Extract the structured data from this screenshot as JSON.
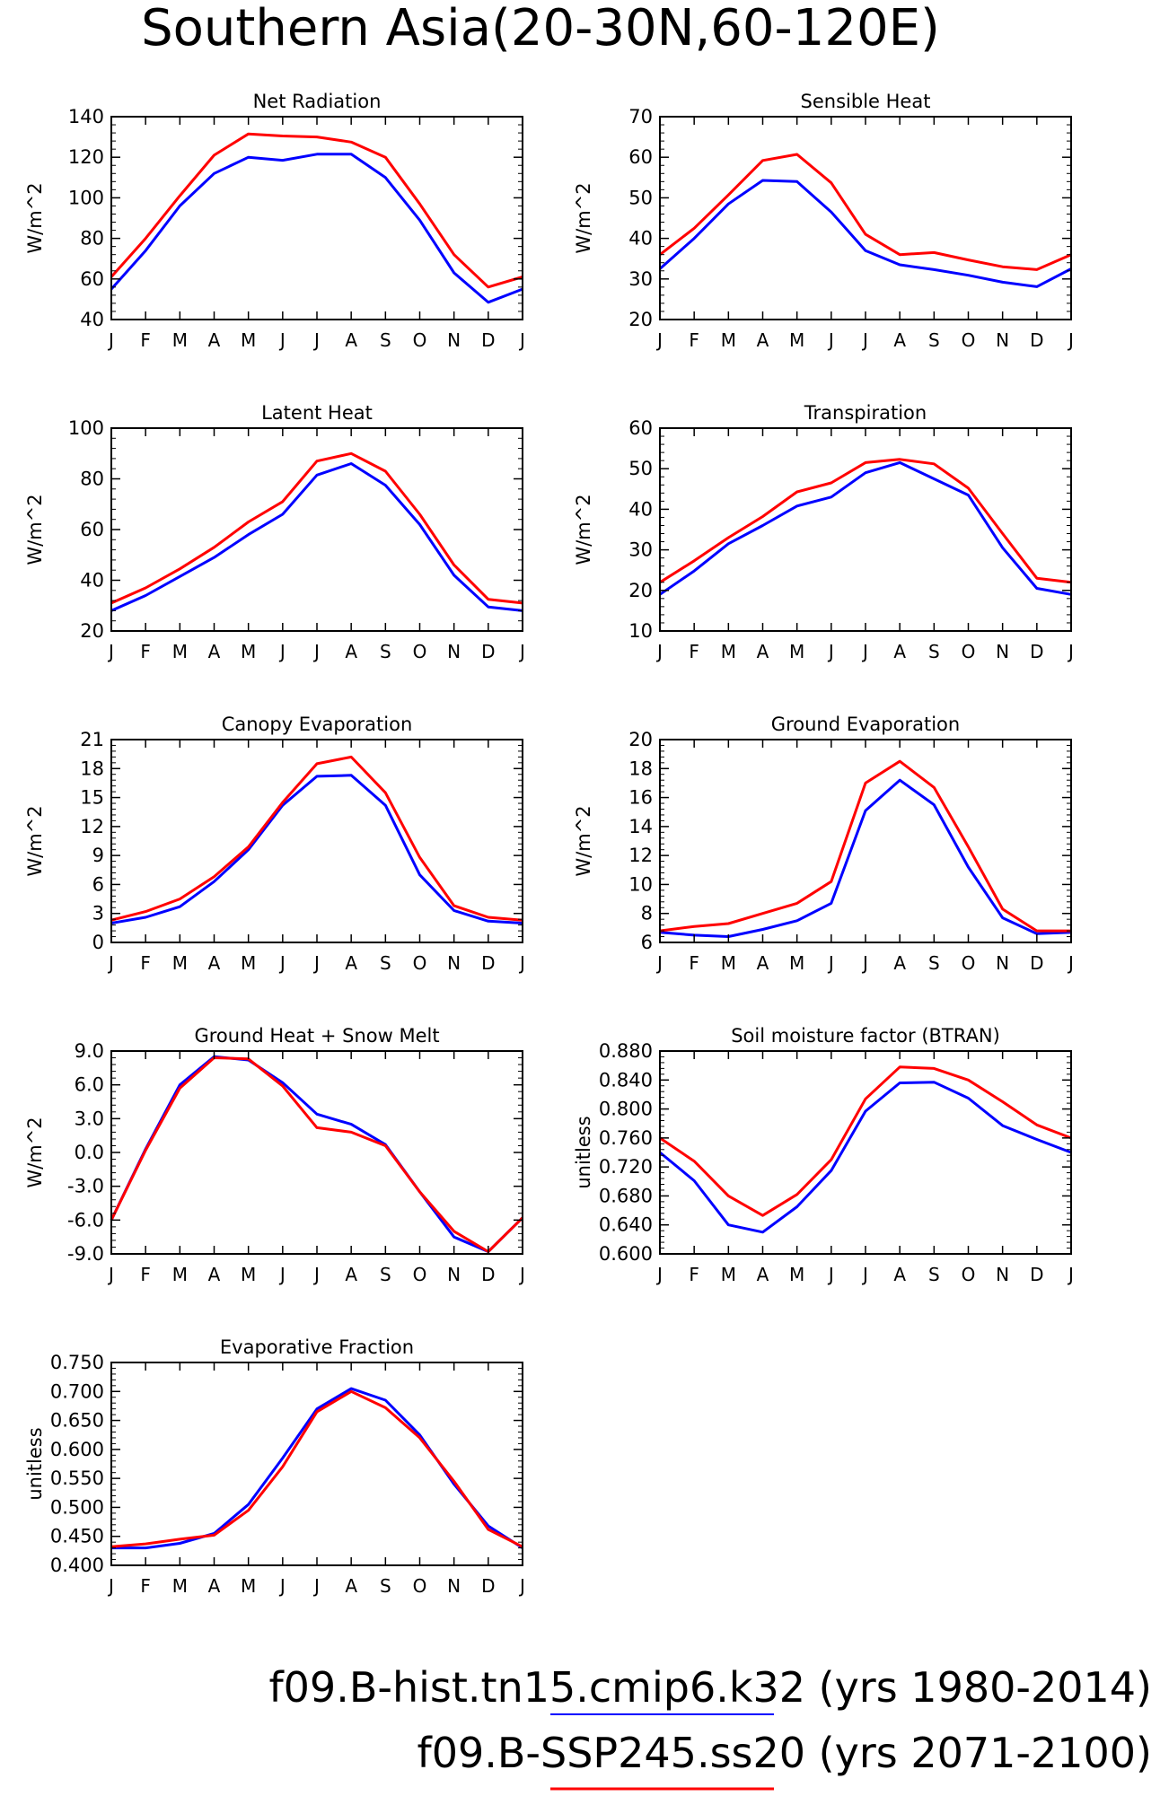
{
  "page": {
    "title": "Southern Asia(20-30N,60-120E)"
  },
  "legend": [
    {
      "label": "f09.B-hist.tn15.cmip6.k32 (yrs 1980-2014)",
      "color": "#0000ff"
    },
    {
      "label": "f09.B-SSP245.ss20 (yrs 2071-2100)",
      "color": "#ff0000"
    }
  ],
  "colors": {
    "hist": "#0000ff",
    "future": "#ff0000",
    "axis": "#000000"
  },
  "chart_data": [
    {
      "type": "line",
      "title": "Net Radiation",
      "ylabel": "W/m^2",
      "x": [
        "J",
        "F",
        "M",
        "A",
        "M",
        "J",
        "J",
        "A",
        "S",
        "O",
        "N",
        "D",
        "J"
      ],
      "ylim": [
        40,
        140
      ],
      "yticks": [
        40,
        60,
        80,
        100,
        120,
        140
      ],
      "ytick_labels": [
        "40",
        "60",
        "80",
        "100",
        "120",
        "140"
      ],
      "series": [
        {
          "color": "#0000ff",
          "values": [
            55,
            74,
            96,
            112,
            120,
            118.5,
            121.5,
            121.5,
            110,
            89,
            63,
            48.5,
            55
          ]
        },
        {
          "color": "#ff0000",
          "values": [
            61,
            80,
            101,
            121,
            131.5,
            130.5,
            130,
            127.5,
            120,
            97,
            72,
            56,
            61
          ]
        }
      ]
    },
    {
      "type": "line",
      "title": "Sensible Heat",
      "ylabel": "W/m^2",
      "x": [
        "J",
        "F",
        "M",
        "A",
        "M",
        "J",
        "J",
        "A",
        "S",
        "O",
        "N",
        "D",
        "J"
      ],
      "ylim": [
        20,
        70
      ],
      "yticks": [
        20,
        30,
        40,
        50,
        60,
        70
      ],
      "ytick_labels": [
        "20",
        "30",
        "40",
        "50",
        "60",
        "70"
      ],
      "series": [
        {
          "color": "#0000ff",
          "values": [
            32.5,
            40,
            48.5,
            54.3,
            54,
            46.5,
            37,
            33.5,
            32.3,
            30.9,
            29.2,
            28.1,
            32.5
          ]
        },
        {
          "color": "#ff0000",
          "values": [
            36,
            42.5,
            50.7,
            59.2,
            60.7,
            53.7,
            41,
            36,
            36.5,
            34.7,
            33,
            32.3,
            36
          ]
        }
      ]
    },
    {
      "type": "line",
      "title": "Latent Heat",
      "ylabel": "W/m^2",
      "x": [
        "J",
        "F",
        "M",
        "A",
        "M",
        "J",
        "J",
        "A",
        "S",
        "O",
        "N",
        "D",
        "J"
      ],
      "ylim": [
        20,
        100
      ],
      "yticks": [
        20,
        40,
        60,
        80,
        100
      ],
      "ytick_labels": [
        "20",
        "40",
        "60",
        "80",
        "100"
      ],
      "series": [
        {
          "color": "#0000ff",
          "values": [
            28,
            34,
            41.5,
            49,
            58,
            66,
            81.5,
            86,
            77.5,
            62,
            42,
            29.5,
            28
          ]
        },
        {
          "color": "#ff0000",
          "values": [
            31,
            37,
            44.5,
            53,
            63,
            71,
            87,
            90,
            83,
            66,
            46,
            32.5,
            31
          ]
        }
      ]
    },
    {
      "type": "line",
      "title": "Transpiration",
      "ylabel": "W/m^2",
      "x": [
        "J",
        "F",
        "M",
        "A",
        "M",
        "J",
        "J",
        "A",
        "S",
        "O",
        "N",
        "D",
        "J"
      ],
      "ylim": [
        10,
        60
      ],
      "yticks": [
        10,
        20,
        30,
        40,
        50,
        60
      ],
      "ytick_labels": [
        "10",
        "20",
        "30",
        "40",
        "50",
        "60"
      ],
      "series": [
        {
          "color": "#0000ff",
          "values": [
            19,
            24.8,
            31.5,
            36,
            40.8,
            43,
            49,
            51.5,
            47.5,
            43.5,
            30.5,
            20.5,
            19
          ]
        },
        {
          "color": "#ff0000",
          "values": [
            22,
            27.3,
            33,
            38.2,
            44.3,
            46.5,
            51.5,
            52.3,
            51.2,
            45.2,
            34,
            23,
            22
          ]
        }
      ]
    },
    {
      "type": "line",
      "title": "Canopy Evaporation",
      "ylabel": "W/m^2",
      "x": [
        "J",
        "F",
        "M",
        "A",
        "M",
        "J",
        "J",
        "A",
        "S",
        "O",
        "N",
        "D",
        "J"
      ],
      "ylim": [
        0,
        21
      ],
      "yticks": [
        0,
        3,
        6,
        9,
        12,
        15,
        18,
        21
      ],
      "ytick_labels": [
        "0",
        "3",
        "6",
        "9",
        "12",
        "15",
        "18",
        "21"
      ],
      "series": [
        {
          "color": "#0000ff",
          "values": [
            2,
            2.6,
            3.7,
            6.3,
            9.6,
            14.2,
            17.2,
            17.3,
            14.2,
            7,
            3.3,
            2.2,
            2
          ]
        },
        {
          "color": "#ff0000",
          "values": [
            2.3,
            3.2,
            4.5,
            6.8,
            9.9,
            14.5,
            18.5,
            19.2,
            15.5,
            8.8,
            3.8,
            2.6,
            2.3
          ]
        }
      ]
    },
    {
      "type": "line",
      "title": "Ground Evaporation",
      "ylabel": "W/m^2",
      "x": [
        "J",
        "F",
        "M",
        "A",
        "M",
        "J",
        "J",
        "A",
        "S",
        "O",
        "N",
        "D",
        "J"
      ],
      "ylim": [
        6,
        20
      ],
      "yticks": [
        6,
        8,
        10,
        12,
        14,
        16,
        18,
        20
      ],
      "ytick_labels": [
        "6",
        "8",
        "10",
        "12",
        "14",
        "16",
        "18",
        "20"
      ],
      "series": [
        {
          "color": "#0000ff",
          "values": [
            6.7,
            6.5,
            6.4,
            6.9,
            7.5,
            8.7,
            15.1,
            17.2,
            15.5,
            11.2,
            7.7,
            6.6,
            6.7
          ]
        },
        {
          "color": "#ff0000",
          "values": [
            6.8,
            7.1,
            7.3,
            8,
            8.7,
            10.2,
            17,
            18.5,
            16.7,
            12.6,
            8.3,
            6.8,
            6.8
          ]
        }
      ]
    },
    {
      "type": "line",
      "title": "Ground Heat + Snow Melt",
      "ylabel": "W/m^2",
      "x": [
        "J",
        "F",
        "M",
        "A",
        "M",
        "J",
        "J",
        "A",
        "S",
        "O",
        "N",
        "D",
        "J"
      ],
      "ylim": [
        -9,
        9
      ],
      "yticks": [
        -9,
        -6,
        -3,
        0,
        3,
        6,
        9
      ],
      "ytick_labels": [
        "-9.0",
        "-6.0",
        "-3.0",
        "0.0",
        "3.0",
        "6.0",
        "9.0"
      ],
      "series": [
        {
          "color": "#0000ff",
          "values": [
            -6,
            0.3,
            6,
            8.5,
            8.2,
            6.2,
            3.4,
            2.5,
            0.7,
            -3.5,
            -7.5,
            -8.8,
            -5.8
          ]
        },
        {
          "color": "#ff0000",
          "values": [
            -6,
            0.2,
            5.7,
            8.4,
            8.3,
            5.9,
            2.2,
            1.8,
            0.6,
            -3.5,
            -7,
            -8.8,
            -5.8
          ]
        }
      ]
    },
    {
      "type": "line",
      "title": "Soil moisture factor (BTRAN)",
      "ylabel": "unitless",
      "x": [
        "J",
        "F",
        "M",
        "A",
        "M",
        "J",
        "J",
        "A",
        "S",
        "O",
        "N",
        "D",
        "J"
      ],
      "ylim": [
        0.6,
        0.88
      ],
      "yticks": [
        0.6,
        0.64,
        0.68,
        0.72,
        0.76,
        0.8,
        0.84,
        0.88
      ],
      "ytick_labels": [
        "0.600",
        "0.640",
        "0.680",
        "0.720",
        "0.760",
        "0.800",
        "0.840",
        "0.880"
      ],
      "series": [
        {
          "color": "#0000ff",
          "values": [
            0.74,
            0.701,
            0.64,
            0.63,
            0.665,
            0.715,
            0.797,
            0.836,
            0.837,
            0.815,
            0.777,
            0.758,
            0.74
          ]
        },
        {
          "color": "#ff0000",
          "values": [
            0.76,
            0.728,
            0.68,
            0.653,
            0.682,
            0.73,
            0.814,
            0.858,
            0.856,
            0.84,
            0.81,
            0.778,
            0.76
          ]
        }
      ]
    },
    {
      "type": "line",
      "title": "Evaporative Fraction",
      "ylabel": "unitless",
      "x": [
        "J",
        "F",
        "M",
        "A",
        "M",
        "J",
        "J",
        "A",
        "S",
        "O",
        "N",
        "D",
        "J"
      ],
      "ylim": [
        0.4,
        0.75
      ],
      "yticks": [
        0.4,
        0.45,
        0.5,
        0.55,
        0.6,
        0.65,
        0.7,
        0.75
      ],
      "ytick_labels": [
        "0.400",
        "0.450",
        "0.500",
        "0.550",
        "0.600",
        "0.650",
        "0.700",
        "0.750"
      ],
      "series": [
        {
          "color": "#0000ff",
          "values": [
            0.43,
            0.43,
            0.438,
            0.455,
            0.505,
            0.585,
            0.67,
            0.705,
            0.685,
            0.625,
            0.54,
            0.468,
            0.43
          ]
        },
        {
          "color": "#ff0000",
          "values": [
            0.432,
            0.437,
            0.445,
            0.452,
            0.495,
            0.57,
            0.665,
            0.7,
            0.672,
            0.62,
            0.545,
            0.462,
            0.432
          ]
        }
      ]
    }
  ]
}
